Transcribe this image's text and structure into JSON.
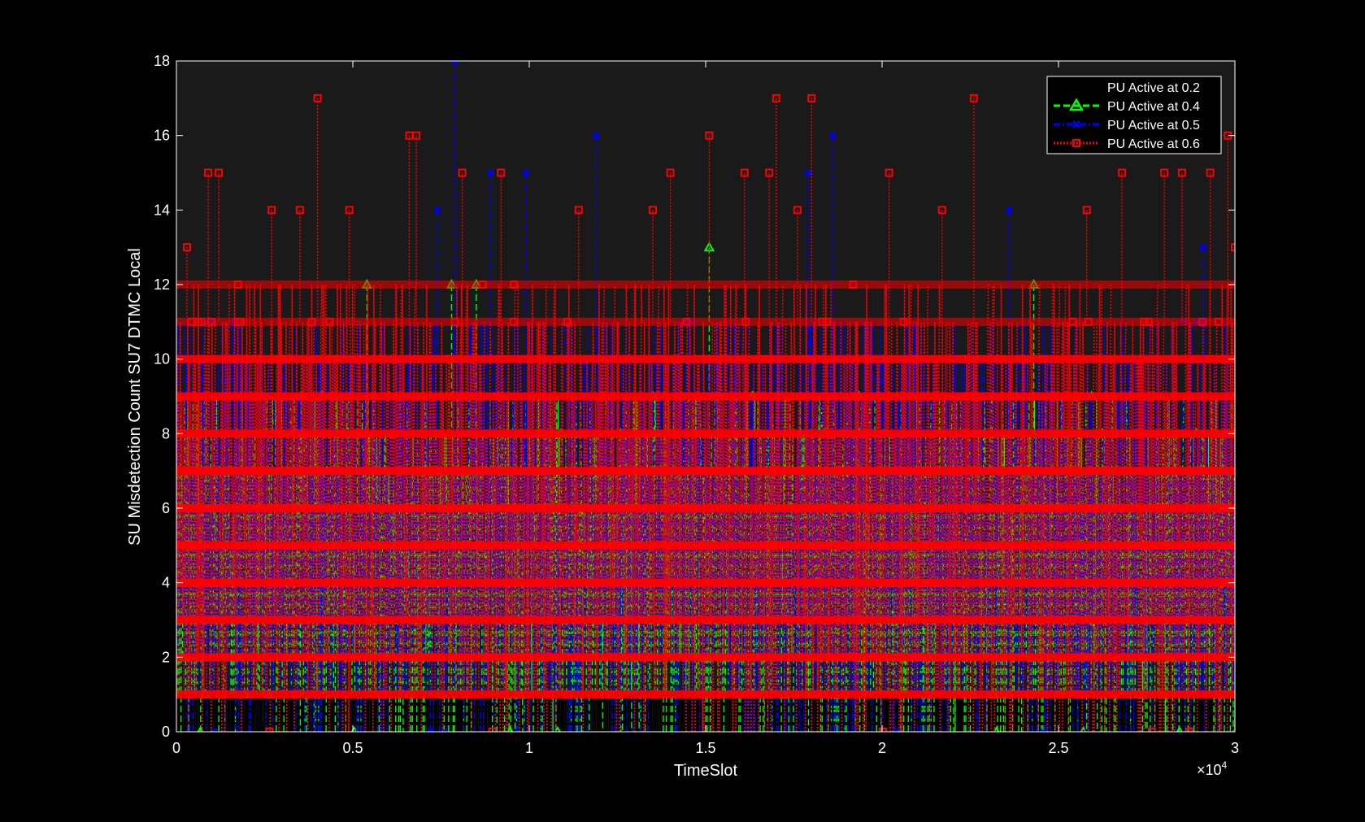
{
  "chart_data": {
    "type": "line",
    "title": "",
    "xlabel": "TimeSlot",
    "ylabel": "SU Misdetection Count SU7 DTMC Local",
    "x_exponent_label": "×10",
    "x_exponent_power": "4",
    "xlim": [
      0,
      30000
    ],
    "ylim": [
      0,
      18
    ],
    "x_ticks": [
      0,
      5000,
      10000,
      15000,
      20000,
      25000,
      30000
    ],
    "x_tick_labels": [
      "0",
      "0.5",
      "1",
      "1.5",
      "2",
      "2.5",
      "3"
    ],
    "y_ticks": [
      0,
      2,
      4,
      6,
      8,
      10,
      12,
      14,
      16,
      18
    ],
    "y_tick_labels": [
      "0",
      "2",
      "4",
      "6",
      "8",
      "10",
      "12",
      "14",
      "16",
      "18"
    ],
    "grid": false,
    "legend_position": "top-right",
    "background_color": "#000000",
    "axes_color": "#1a1a1a",
    "series": [
      {
        "name": "PU Active at 0.2",
        "color": "#000000",
        "line_style": "solid",
        "marker": "circle",
        "typical_range": [
          0,
          1
        ],
        "peaks": [
          {
            "x": 2400,
            "y": 1
          },
          {
            "x": 5200,
            "y": 1
          },
          {
            "x": 8300,
            "y": 1
          },
          {
            "x": 12000,
            "y": 1
          },
          {
            "x": 17500,
            "y": 2
          },
          {
            "x": 22000,
            "y": 1
          },
          {
            "x": 26500,
            "y": 1
          },
          {
            "x": 29300,
            "y": 1
          }
        ]
      },
      {
        "name": "PU Active at 0.4",
        "color": "#00ff00",
        "line_style": "dashed",
        "marker": "triangle",
        "typical_range": [
          0,
          9
        ],
        "peaks": [
          {
            "x": 0,
            "y": 9
          },
          {
            "x": 5400,
            "y": 12
          },
          {
            "x": 7800,
            "y": 12
          },
          {
            "x": 8500,
            "y": 12
          },
          {
            "x": 15100,
            "y": 13
          },
          {
            "x": 24300,
            "y": 12
          },
          {
            "x": 30000,
            "y": 8
          }
        ]
      },
      {
        "name": "PU Active at 0.5",
        "color": "#0000ff",
        "line_style": "dashdot",
        "marker": "x",
        "typical_range": [
          0,
          11
        ],
        "peaks": [
          {
            "x": 7400,
            "y": 14
          },
          {
            "x": 7900,
            "y": 18
          },
          {
            "x": 8900,
            "y": 15
          },
          {
            "x": 9900,
            "y": 15
          },
          {
            "x": 11900,
            "y": 16
          },
          {
            "x": 17900,
            "y": 15
          },
          {
            "x": 18600,
            "y": 16
          },
          {
            "x": 23600,
            "y": 14
          },
          {
            "x": 29100,
            "y": 13
          }
        ]
      },
      {
        "name": "PU Active at 0.6",
        "color": "#ff0000",
        "line_style": "dotted",
        "marker": "square",
        "typical_range": [
          0,
          12
        ],
        "peaks": [
          {
            "x": 300,
            "y": 13
          },
          {
            "x": 900,
            "y": 15
          },
          {
            "x": 1200,
            "y": 15
          },
          {
            "x": 2700,
            "y": 14
          },
          {
            "x": 3500,
            "y": 14
          },
          {
            "x": 4000,
            "y": 17
          },
          {
            "x": 4900,
            "y": 14
          },
          {
            "x": 6600,
            "y": 16
          },
          {
            "x": 6800,
            "y": 16
          },
          {
            "x": 8100,
            "y": 15
          },
          {
            "x": 9200,
            "y": 15
          },
          {
            "x": 11400,
            "y": 14
          },
          {
            "x": 13500,
            "y": 14
          },
          {
            "x": 14000,
            "y": 15
          },
          {
            "x": 15100,
            "y": 16
          },
          {
            "x": 16100,
            "y": 15
          },
          {
            "x": 16800,
            "y": 15
          },
          {
            "x": 17000,
            "y": 17
          },
          {
            "x": 17600,
            "y": 14
          },
          {
            "x": 18000,
            "y": 17
          },
          {
            "x": 20200,
            "y": 15
          },
          {
            "x": 21700,
            "y": 14
          },
          {
            "x": 22600,
            "y": 17
          },
          {
            "x": 25800,
            "y": 14
          },
          {
            "x": 26800,
            "y": 15
          },
          {
            "x": 28000,
            "y": 15
          },
          {
            "x": 28500,
            "y": 15
          },
          {
            "x": 29300,
            "y": 15
          },
          {
            "x": 29800,
            "y": 16
          },
          {
            "x": 30000,
            "y": 13
          }
        ]
      }
    ]
  }
}
